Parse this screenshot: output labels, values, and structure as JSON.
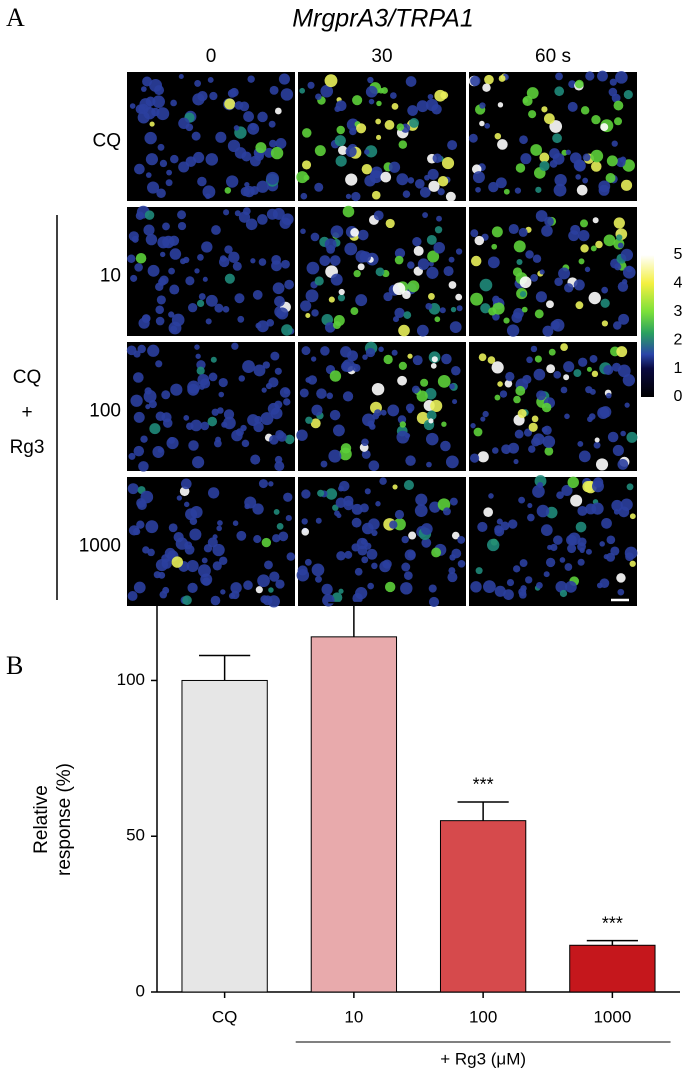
{
  "panel_labels": [
    "A",
    "B"
  ],
  "image_panel": {
    "title": "MrgprA3/TRPA1",
    "column_labels": [
      "0",
      "30",
      "60 s"
    ],
    "row_labels": [
      "CQ",
      "10",
      "100",
      "1000"
    ],
    "group_label": [
      "CQ",
      "+",
      "Rg3"
    ],
    "colorbar_ticks": [
      0,
      1,
      2,
      3,
      4,
      5
    ]
  },
  "chart_data": {
    "type": "bar",
    "categories": [
      "CQ",
      "10",
      "100",
      "1000"
    ],
    "values": [
      100,
      114,
      55,
      15
    ],
    "errors": [
      8,
      11,
      6,
      1.5
    ],
    "colors": [
      "#e6e6e6",
      "#e8aaac",
      "#d64a4c",
      "#c5171c"
    ],
    "value_annotations": [
      null,
      null,
      "***",
      "***"
    ],
    "ylabel": [
      "Relative",
      "response (%)"
    ],
    "group_label": "+ Rg3 (μM)",
    "ylim": [
      0,
      130
    ],
    "yticks": [
      0,
      50,
      100
    ]
  }
}
